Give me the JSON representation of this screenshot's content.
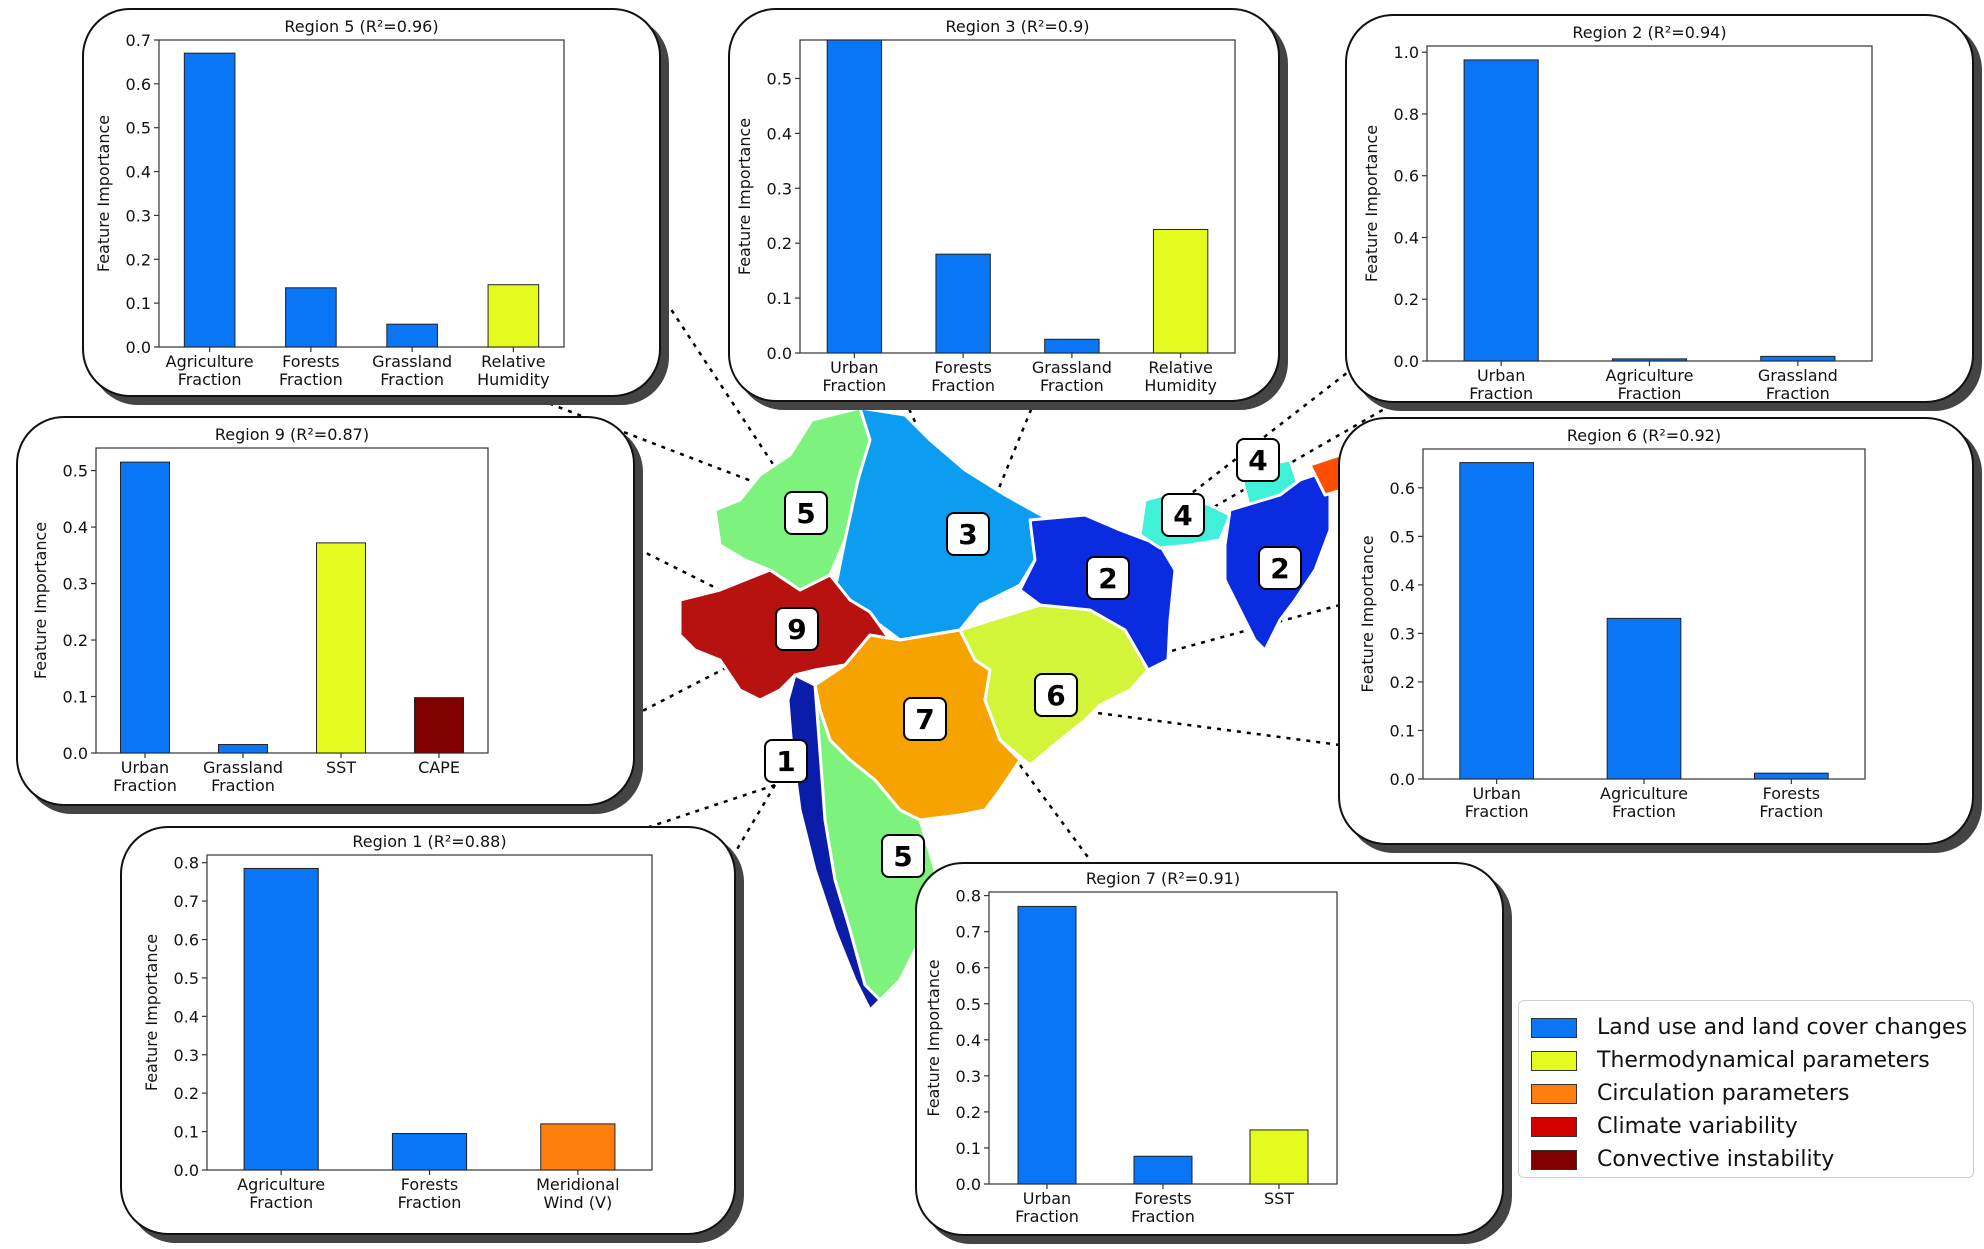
{
  "colors": {
    "lulc": "#0a76f5",
    "thermo": "#e4fb1f",
    "circulation": "#ff7f0e",
    "climate": "#d40000",
    "convective": "#800000"
  },
  "axis_ylabel": "Feature Importance",
  "map": {
    "labels": [
      "5",
      "3",
      "2",
      "4",
      "4",
      "2",
      "9",
      "6",
      "7",
      "1",
      "5"
    ]
  },
  "legend": {
    "items": [
      {
        "label": "Land use and land cover changes",
        "color": "#0a76f5"
      },
      {
        "label": "Thermodynamical parameters",
        "color": "#e4fb1f"
      },
      {
        "label": "Circulation parameters",
        "color": "#ff7f0e"
      },
      {
        "label": "Climate variability",
        "color": "#d40000"
      },
      {
        "label": "Convective instability",
        "color": "#800000"
      }
    ]
  },
  "chart_data": [
    {
      "id": "r5",
      "type": "bar",
      "title": "Region 5 (R²=0.96)",
      "ylabel": "Feature Importance",
      "ylim": [
        0,
        0.7
      ],
      "yticks": [
        "0.0",
        "0.1",
        "0.2",
        "0.3",
        "0.4",
        "0.5",
        "0.6",
        "0.7"
      ],
      "categories": [
        [
          "Agriculture",
          "Fraction"
        ],
        [
          "Forests",
          "Fraction"
        ],
        [
          "Grassland",
          "Fraction"
        ],
        [
          "Relative",
          "Humidity"
        ]
      ],
      "values": [
        0.67,
        0.135,
        0.052,
        0.142
      ],
      "colors": [
        "#0a76f5",
        "#0a76f5",
        "#0a76f5",
        "#e4fb1f"
      ]
    },
    {
      "id": "r3",
      "type": "bar",
      "title": "Region 3 (R²=0.9)",
      "ylabel": "Feature Importance",
      "ylim": [
        0,
        0.57
      ],
      "yticks": [
        "0.0",
        "0.1",
        "0.2",
        "0.3",
        "0.4",
        "0.5"
      ],
      "categories": [
        [
          "Urban",
          "Fraction"
        ],
        [
          "Forests",
          "Fraction"
        ],
        [
          "Grassland",
          "Fraction"
        ],
        [
          "Relative",
          "Humidity"
        ]
      ],
      "values": [
        0.57,
        0.18,
        0.025,
        0.225
      ],
      "colors": [
        "#0a76f5",
        "#0a76f5",
        "#0a76f5",
        "#e4fb1f"
      ]
    },
    {
      "id": "r2",
      "type": "bar",
      "title": "Region 2 (R²=0.94)",
      "ylabel": "Feature Importance",
      "ylim": [
        0,
        1.02
      ],
      "yticks": [
        "0.0",
        "0.2",
        "0.4",
        "0.6",
        "0.8",
        "1.0"
      ],
      "categories": [
        [
          "Urban",
          "Fraction"
        ],
        [
          "Agriculture",
          "Fraction"
        ],
        [
          "Grassland",
          "Fraction"
        ]
      ],
      "values": [
        0.975,
        0.007,
        0.015
      ],
      "colors": [
        "#0a76f5",
        "#0a76f5",
        "#0a76f5"
      ]
    },
    {
      "id": "r9",
      "type": "bar",
      "title": "Region 9 (R²=0.87)",
      "ylabel": "Feature Importance",
      "ylim": [
        0,
        0.54
      ],
      "yticks": [
        "0.0",
        "0.1",
        "0.2",
        "0.3",
        "0.4",
        "0.5"
      ],
      "categories": [
        [
          "Urban",
          "Fraction"
        ],
        [
          "Grassland",
          "Fraction"
        ],
        [
          "SST"
        ],
        [
          "CAPE"
        ]
      ],
      "values": [
        0.515,
        0.015,
        0.372,
        0.098
      ],
      "colors": [
        "#0a76f5",
        "#0a76f5",
        "#e4fb1f",
        "#800000"
      ]
    },
    {
      "id": "r6",
      "type": "bar",
      "title": "Region 6 (R²=0.92)",
      "ylabel": "Feature Importance",
      "ylim": [
        0,
        0.68
      ],
      "yticks": [
        "0.0",
        "0.1",
        "0.2",
        "0.3",
        "0.4",
        "0.5",
        "0.6"
      ],
      "categories": [
        [
          "Urban",
          "Fraction"
        ],
        [
          "Agriculture",
          "Fraction"
        ],
        [
          "Forests",
          "Fraction"
        ]
      ],
      "values": [
        0.652,
        0.331,
        0.012
      ],
      "colors": [
        "#0a76f5",
        "#0a76f5",
        "#0a76f5"
      ]
    },
    {
      "id": "r1",
      "type": "bar",
      "title": "Region 1 (R²=0.88)",
      "ylabel": "Feature Importance",
      "ylim": [
        0,
        0.82
      ],
      "yticks": [
        "0.0",
        "0.1",
        "0.2",
        "0.3",
        "0.4",
        "0.5",
        "0.6",
        "0.7",
        "0.8"
      ],
      "categories": [
        [
          "Agriculture",
          "Fraction"
        ],
        [
          "Forests",
          "Fraction"
        ],
        [
          "Meridional",
          "Wind (V)"
        ]
      ],
      "values": [
        0.785,
        0.095,
        0.12
      ],
      "colors": [
        "#0a76f5",
        "#0a76f5",
        "#ff7f0e"
      ]
    },
    {
      "id": "r7",
      "type": "bar",
      "title": "Region 7 (R²=0.91)",
      "ylabel": "Feature Importance",
      "ylim": [
        0,
        0.81
      ],
      "yticks": [
        "0.0",
        "0.1",
        "0.2",
        "0.3",
        "0.4",
        "0.5",
        "0.6",
        "0.7",
        "0.8"
      ],
      "categories": [
        [
          "Urban",
          "Fraction"
        ],
        [
          "Forests",
          "Fraction"
        ],
        [
          "SST"
        ]
      ],
      "values": [
        0.77,
        0.077,
        0.15
      ],
      "colors": [
        "#0a76f5",
        "#0a76f5",
        "#e4fb1f"
      ]
    }
  ]
}
